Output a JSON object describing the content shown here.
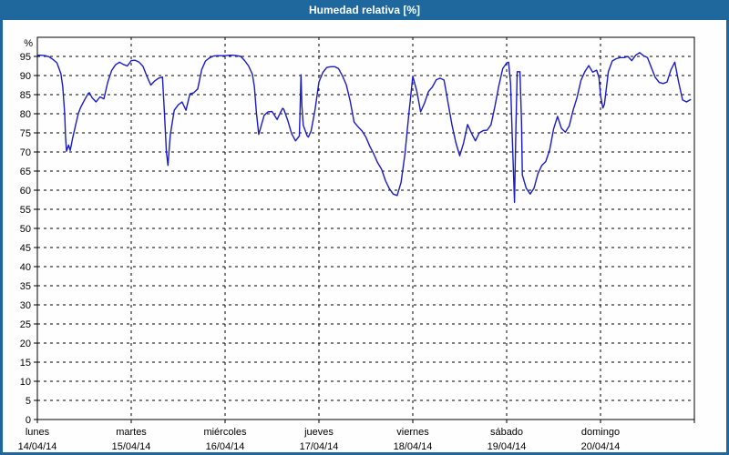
{
  "window": {
    "title": "Humedad relativa [%]"
  },
  "colors": {
    "frame_blue": "#1e689e",
    "titlebar_blue": "#1e689e",
    "title_text": "#ffffff",
    "line_blue": "#1a1ac8",
    "grid_black": "#000000",
    "background": "#fdfefd"
  },
  "chart_data": {
    "type": "line",
    "title": "Humedad relativa [%]",
    "y_unit_label": "%",
    "ylim": [
      0,
      100
    ],
    "y_ticks": [
      0,
      5,
      10,
      15,
      20,
      25,
      30,
      35,
      40,
      45,
      50,
      55,
      60,
      65,
      70,
      75,
      80,
      85,
      90,
      95
    ],
    "grid": "dashed",
    "legend": "none",
    "hours_per_day": 24,
    "x_days": [
      {
        "name": "lunes",
        "date": "14/04/14"
      },
      {
        "name": "martes",
        "date": "15/04/14"
      },
      {
        "name": "miércoles",
        "date": "16/04/14"
      },
      {
        "name": "jueves",
        "date": "17/04/14"
      },
      {
        "name": "viernes",
        "date": "18/04/14"
      },
      {
        "name": "sábado",
        "date": "19/04/14"
      },
      {
        "name": "domingo",
        "date": "20/04/14"
      }
    ],
    "series": [
      {
        "name": "Humedad relativa",
        "units": "%",
        "points": [
          [
            0,
            95.3
          ],
          [
            1,
            95.3
          ],
          [
            2,
            95.2
          ],
          [
            3,
            94.9
          ],
          [
            4,
            94.2
          ],
          [
            5,
            93.3
          ],
          [
            6,
            90.5
          ],
          [
            6.5,
            87.0
          ],
          [
            7,
            80.0
          ],
          [
            7.2,
            74.0
          ],
          [
            7.45,
            70.2
          ],
          [
            8,
            71.8
          ],
          [
            8.4,
            70.4
          ],
          [
            9,
            73.5
          ],
          [
            10,
            78.0
          ],
          [
            10.5,
            80.2
          ],
          [
            11,
            81.5
          ],
          [
            12,
            83.5
          ],
          [
            13,
            85.3
          ],
          [
            13.3,
            85.5
          ],
          [
            14,
            84.2
          ],
          [
            15,
            83.1
          ],
          [
            16,
            84.4
          ],
          [
            17,
            83.9
          ],
          [
            18,
            88.3
          ],
          [
            19,
            91.3
          ],
          [
            20,
            92.8
          ],
          [
            21,
            93.5
          ],
          [
            22,
            92.9
          ],
          [
            23,
            92.5
          ],
          [
            24,
            93.9
          ],
          [
            25,
            94.0
          ],
          [
            26,
            93.5
          ],
          [
            27,
            92.4
          ],
          [
            28,
            89.8
          ],
          [
            29,
            87.5
          ],
          [
            30,
            88.6
          ],
          [
            31,
            89.3
          ],
          [
            32,
            89.6
          ],
          [
            32.5,
            80.0
          ],
          [
            33,
            70.0
          ],
          [
            33.4,
            66.5
          ],
          [
            34,
            74.5
          ],
          [
            35,
            80.9
          ],
          [
            36,
            82.3
          ],
          [
            37,
            83.1
          ],
          [
            38,
            80.9
          ],
          [
            39,
            85.2
          ],
          [
            40,
            85.5
          ],
          [
            41,
            86.5
          ],
          [
            42,
            91.5
          ],
          [
            43,
            93.8
          ],
          [
            44,
            94.6
          ],
          [
            45,
            95.1
          ],
          [
            46,
            95.2
          ],
          [
            47,
            95.2
          ],
          [
            48,
            95.2
          ],
          [
            49,
            95.3
          ],
          [
            50,
            95.3
          ],
          [
            51,
            95.2
          ],
          [
            52,
            95.0
          ],
          [
            53,
            93.9
          ],
          [
            54,
            92.5
          ],
          [
            55,
            90.3
          ],
          [
            55.5,
            87.0
          ],
          [
            56,
            80.5
          ],
          [
            56.6,
            74.6
          ],
          [
            57,
            76.0
          ],
          [
            58,
            79.6
          ],
          [
            59,
            80.5
          ],
          [
            60,
            80.6
          ],
          [
            61,
            79.0
          ],
          [
            61.3,
            78.5
          ],
          [
            62,
            80.0
          ],
          [
            62.7,
            81.4
          ],
          [
            63,
            81.2
          ],
          [
            64,
            78.3
          ],
          [
            65,
            74.8
          ],
          [
            66,
            72.9
          ],
          [
            67,
            74.2
          ],
          [
            67.15,
            80.0
          ],
          [
            67.4,
            90.2
          ],
          [
            67.65,
            82.0
          ],
          [
            68,
            77.0
          ],
          [
            69,
            74.2
          ],
          [
            69.3,
            73.9
          ],
          [
            70,
            75.5
          ],
          [
            71,
            81.0
          ],
          [
            72,
            88.3
          ],
          [
            73,
            90.8
          ],
          [
            74,
            92.1
          ],
          [
            75,
            92.3
          ],
          [
            76,
            92.3
          ],
          [
            77,
            91.8
          ],
          [
            78,
            89.9
          ],
          [
            79,
            87.6
          ],
          [
            80,
            83.3
          ],
          [
            81,
            77.8
          ],
          [
            82,
            76.6
          ],
          [
            83,
            75.5
          ],
          [
            84,
            73.9
          ],
          [
            85,
            71.5
          ],
          [
            86,
            69.5
          ],
          [
            87,
            67.2
          ],
          [
            88,
            65.5
          ],
          [
            89,
            62.5
          ],
          [
            90,
            60.4
          ],
          [
            91,
            59.0
          ],
          [
            92,
            58.6
          ],
          [
            93,
            62.0
          ],
          [
            94,
            69.5
          ],
          [
            95,
            80.0
          ],
          [
            96,
            89.8
          ],
          [
            97,
            86.0
          ],
          [
            98,
            80.5
          ],
          [
            99,
            82.8
          ],
          [
            100,
            85.8
          ],
          [
            101,
            87.0
          ],
          [
            102,
            88.9
          ],
          [
            103,
            89.3
          ],
          [
            104,
            88.8
          ],
          [
            105,
            83.0
          ],
          [
            106,
            77.2
          ],
          [
            107,
            72.5
          ],
          [
            108,
            69.0
          ],
          [
            109,
            72.4
          ],
          [
            110,
            77.2
          ],
          [
            111,
            74.9
          ],
          [
            112,
            72.9
          ],
          [
            113,
            75.0
          ],
          [
            114,
            75.6
          ],
          [
            115,
            75.7
          ],
          [
            116,
            77.1
          ],
          [
            117,
            81.9
          ],
          [
            118,
            87.3
          ],
          [
            119,
            91.8
          ],
          [
            120,
            93.3
          ],
          [
            120.5,
            93.5
          ],
          [
            121,
            88.0
          ],
          [
            121.4,
            75.0
          ],
          [
            122,
            56.8
          ],
          [
            122.4,
            78.0
          ],
          [
            122.7,
            91.0
          ],
          [
            123.4,
            91.0
          ],
          [
            123.8,
            78.0
          ],
          [
            124,
            64.0
          ],
          [
            125,
            60.5
          ],
          [
            126,
            59.0
          ],
          [
            127,
            60.5
          ],
          [
            128,
            64.3
          ],
          [
            129,
            66.5
          ],
          [
            130,
            67.5
          ],
          [
            131,
            70.5
          ],
          [
            132,
            76.0
          ],
          [
            133,
            79.3
          ],
          [
            134,
            76.2
          ],
          [
            135,
            75.2
          ],
          [
            136,
            76.8
          ],
          [
            137,
            81.0
          ],
          [
            138,
            84.3
          ],
          [
            139,
            88.7
          ],
          [
            140,
            91.0
          ],
          [
            141,
            92.6
          ],
          [
            142,
            90.9
          ],
          [
            143,
            91.4
          ],
          [
            143.6,
            89.5
          ],
          [
            144,
            84.8
          ],
          [
            144.6,
            81.5
          ],
          [
            145,
            82.5
          ],
          [
            146,
            91.0
          ],
          [
            147,
            93.8
          ],
          [
            148,
            94.4
          ],
          [
            149,
            94.7
          ],
          [
            150,
            94.7
          ],
          [
            151,
            95.0
          ],
          [
            152,
            93.9
          ],
          [
            153,
            95.3
          ],
          [
            154,
            96.0
          ],
          [
            155,
            95.2
          ],
          [
            156,
            94.7
          ],
          [
            157,
            92.1
          ],
          [
            158,
            89.5
          ],
          [
            159,
            88.2
          ],
          [
            160,
            87.9
          ],
          [
            161,
            88.3
          ],
          [
            162,
            91.5
          ],
          [
            163,
            93.5
          ],
          [
            164,
            88.2
          ],
          [
            165,
            83.6
          ],
          [
            166,
            83.1
          ],
          [
            167,
            83.7
          ]
        ]
      }
    ]
  }
}
